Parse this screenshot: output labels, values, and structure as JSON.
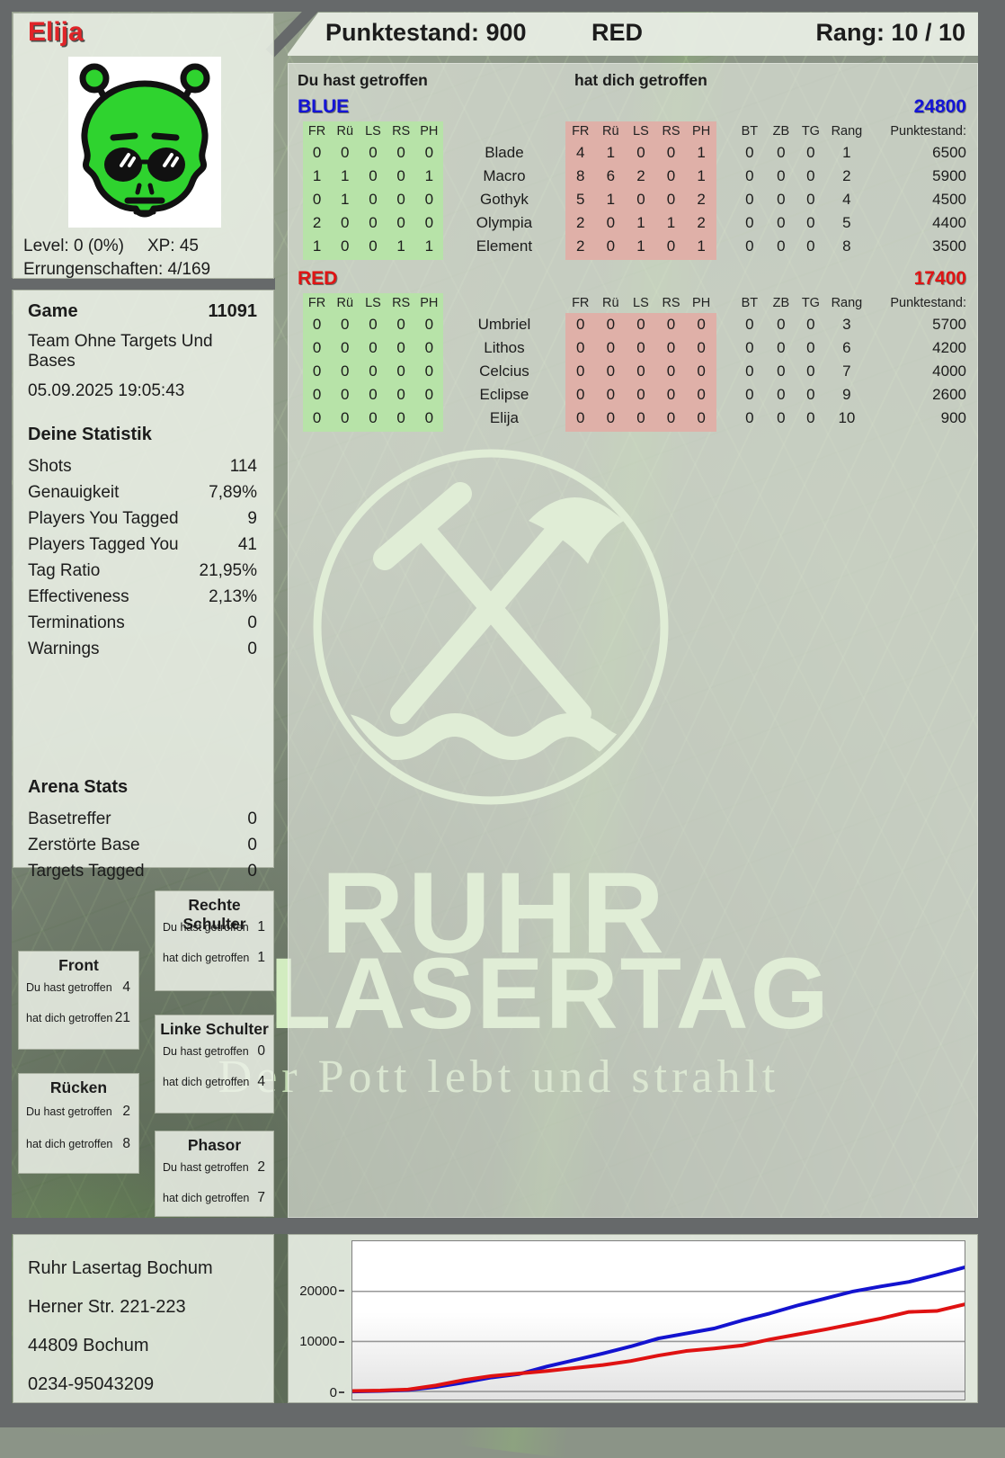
{
  "player": {
    "name": "Elija",
    "level_label": "Level: 0 (0%)",
    "xp_label": "XP: 45",
    "achievements_label": "Errungenschaften: 4/169",
    "avatar": "green-alien-avatar"
  },
  "header": {
    "score_label": "Punktestand: 900",
    "team": "RED",
    "rank_label": "Rang: 10 / 10"
  },
  "game": {
    "title": "Game",
    "id": "11091",
    "mode": "Team Ohne Targets Und Bases",
    "datetime": "05.09.2025 19:05:43"
  },
  "stats": {
    "title": "Deine Statistik",
    "rows": [
      {
        "label": "Shots",
        "value": "114"
      },
      {
        "label": "Genauigkeit",
        "value": "7,89%"
      },
      {
        "label": "Players You Tagged",
        "value": "9"
      },
      {
        "label": "Players Tagged You",
        "value": "41"
      },
      {
        "label": "Tag Ratio",
        "value": "21,95%"
      },
      {
        "label": "Effectiveness",
        "value": "2,13%"
      },
      {
        "label": "Terminations",
        "value": "0"
      },
      {
        "label": "Warnings",
        "value": "0"
      }
    ]
  },
  "arena": {
    "title": "Arena Stats",
    "rows": [
      {
        "label": "Basetreffer",
        "value": "0"
      },
      {
        "label": "Zerstörte Base",
        "value": "0"
      },
      {
        "label": "Targets Tagged",
        "value": "0"
      }
    ]
  },
  "hits_header": {
    "you_hit": "Du hast getroffen",
    "hit_you": "hat dich getroffen"
  },
  "columns": {
    "hit": [
      "FR",
      "Rü",
      "LS",
      "RS",
      "PH"
    ],
    "extra": [
      "BT",
      "ZB",
      "TG",
      "Rang"
    ],
    "score_header": "Punktestand:"
  },
  "teams": [
    {
      "name": "BLUE",
      "score": "24800",
      "color": "#1414d6",
      "players": [
        {
          "name": "Blade",
          "you": [
            0,
            0,
            0,
            0,
            0
          ],
          "them": [
            4,
            1,
            0,
            0,
            1
          ],
          "bt": 0,
          "zb": 0,
          "tg": 0,
          "rang": 1,
          "score": 6500
        },
        {
          "name": "Macro",
          "you": [
            1,
            1,
            0,
            0,
            1
          ],
          "them": [
            8,
            6,
            2,
            0,
            1
          ],
          "bt": 0,
          "zb": 0,
          "tg": 0,
          "rang": 2,
          "score": 5900
        },
        {
          "name": "Gothyk",
          "you": [
            0,
            1,
            0,
            0,
            0
          ],
          "them": [
            5,
            1,
            0,
            0,
            2
          ],
          "bt": 0,
          "zb": 0,
          "tg": 0,
          "rang": 4,
          "score": 4500
        },
        {
          "name": "Olympia",
          "you": [
            2,
            0,
            0,
            0,
            0
          ],
          "them": [
            2,
            0,
            1,
            1,
            2
          ],
          "bt": 0,
          "zb": 0,
          "tg": 0,
          "rang": 5,
          "score": 4400
        },
        {
          "name": "Element",
          "you": [
            1,
            0,
            0,
            1,
            1
          ],
          "them": [
            2,
            0,
            1,
            0,
            1
          ],
          "bt": 0,
          "zb": 0,
          "tg": 0,
          "rang": 8,
          "score": 3500
        }
      ]
    },
    {
      "name": "RED",
      "score": "17400",
      "color": "#e01414",
      "players": [
        {
          "name": "Umbriel",
          "you": [
            0,
            0,
            0,
            0,
            0
          ],
          "them": [
            0,
            0,
            0,
            0,
            0
          ],
          "bt": 0,
          "zb": 0,
          "tg": 0,
          "rang": 3,
          "score": 5700
        },
        {
          "name": "Lithos",
          "you": [
            0,
            0,
            0,
            0,
            0
          ],
          "them": [
            0,
            0,
            0,
            0,
            0
          ],
          "bt": 0,
          "zb": 0,
          "tg": 0,
          "rang": 6,
          "score": 4200
        },
        {
          "name": "Celcius",
          "you": [
            0,
            0,
            0,
            0,
            0
          ],
          "them": [
            0,
            0,
            0,
            0,
            0
          ],
          "bt": 0,
          "zb": 0,
          "tg": 0,
          "rang": 7,
          "score": 4000
        },
        {
          "name": "Eclipse",
          "you": [
            0,
            0,
            0,
            0,
            0
          ],
          "them": [
            0,
            0,
            0,
            0,
            0
          ],
          "bt": 0,
          "zb": 0,
          "tg": 0,
          "rang": 9,
          "score": 2600
        },
        {
          "name": "Elija",
          "you": [
            0,
            0,
            0,
            0,
            0
          ],
          "them": [
            0,
            0,
            0,
            0,
            0
          ],
          "bt": 0,
          "zb": 0,
          "tg": 0,
          "rang": 10,
          "score": 900
        }
      ]
    }
  ],
  "body_labels": {
    "you": "Du hast getroffen",
    "them": "hat dich getroffen"
  },
  "body_parts": [
    {
      "title": "Front",
      "you": "4",
      "them": "21"
    },
    {
      "title": "Rücken",
      "you": "2",
      "them": "8"
    },
    {
      "title": "Rechte Schulter",
      "you": "1",
      "them": "1"
    },
    {
      "title": "Linke Schulter",
      "you": "0",
      "them": "4"
    },
    {
      "title": "Phasor",
      "you": "2",
      "them": "7"
    }
  ],
  "address": {
    "lines": [
      "Ruhr Lasertag Bochum",
      "Herner Str. 221-223",
      "44809 Bochum",
      "0234-95043209"
    ]
  },
  "watermark": {
    "line1": "RUHR",
    "line2": "LASERTAG",
    "tagline": "Der Pott lebt und strahlt",
    "logo": "crossed-hammer-and-pick-over-wave"
  },
  "colors": {
    "team_blue": "#1414d6",
    "team_red": "#e01414",
    "green_block": "#b7e3a8",
    "pink_block": "#dfb0a8",
    "player_name": "#e02428",
    "watermark": "#d2ecc0",
    "frame": "#66696a"
  },
  "chart_data": {
    "type": "line",
    "title": "",
    "xlabel": "",
    "ylabel": "",
    "yticks": [
      0,
      10000,
      20000
    ],
    "ylim": [
      0,
      26500
    ],
    "grid": true,
    "legend": "none (blue = BLUE team cumulative score, red = RED team cumulative score over game time)",
    "series": [
      {
        "name": "BLUE",
        "color": "#1313cf",
        "values": [
          0,
          100,
          300,
          900,
          1800,
          2800,
          3500,
          5000,
          6300,
          7600,
          9000,
          10600,
          11600,
          12600,
          14200,
          15600,
          17200,
          18600,
          20000,
          21000,
          21900,
          23300,
          24800
        ]
      },
      {
        "name": "RED",
        "color": "#df1212",
        "values": [
          100,
          200,
          400,
          1200,
          2300,
          3100,
          3600,
          4100,
          4700,
          5300,
          6100,
          7200,
          8100,
          8600,
          9200,
          10400,
          11400,
          12400,
          13500,
          14600,
          15900,
          16100,
          17400
        ]
      }
    ]
  }
}
